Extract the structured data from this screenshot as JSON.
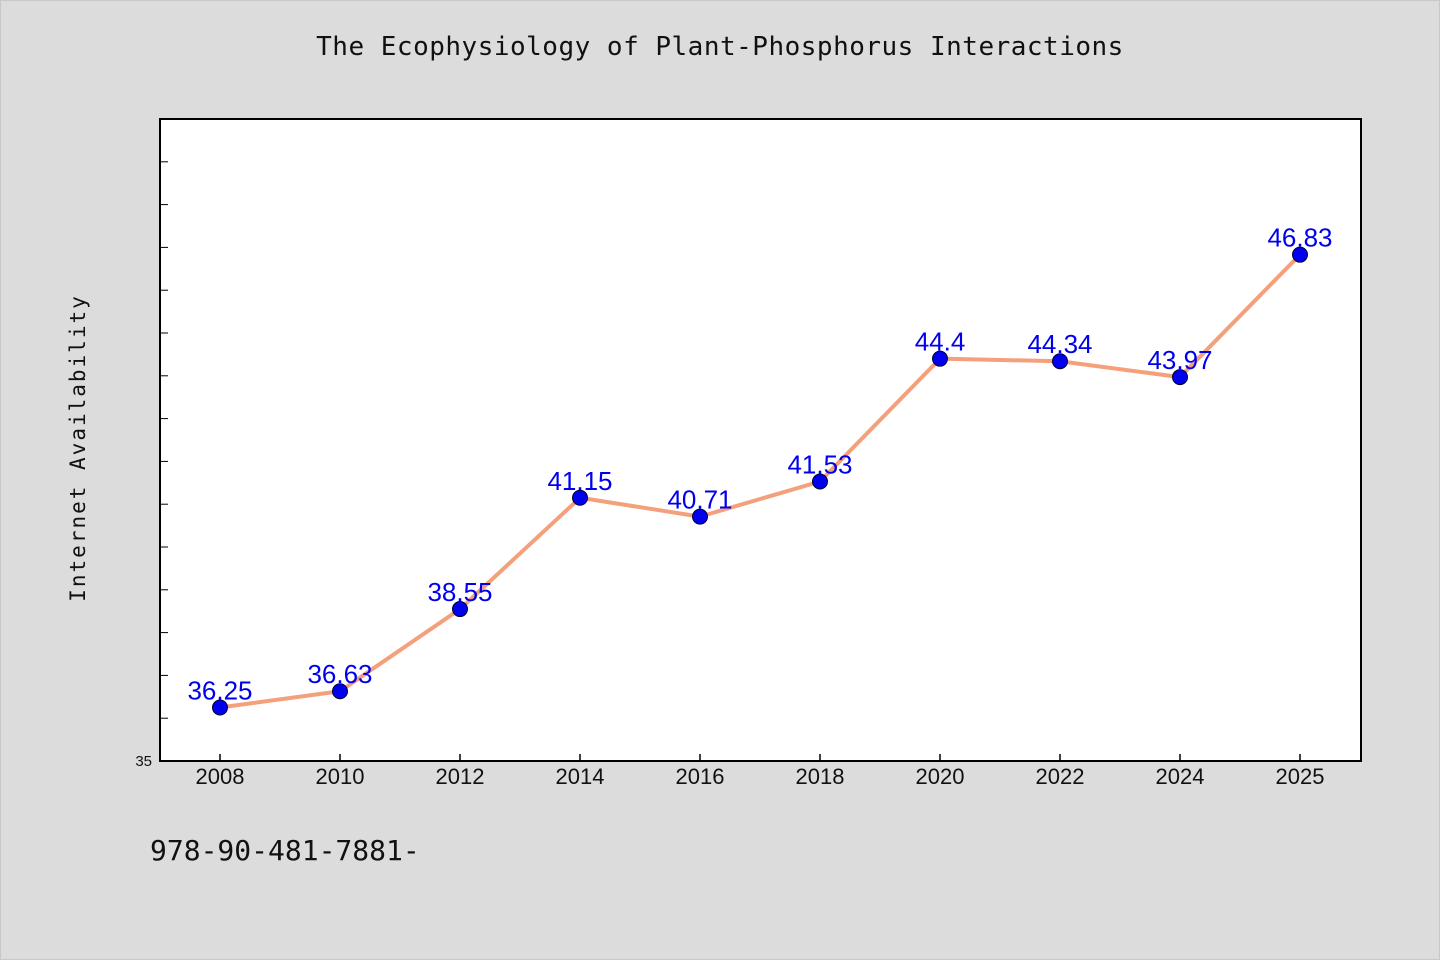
{
  "page": {
    "title": "The Ecophysiology of Plant-Phosphorus Interactions",
    "footer": "978-90-481-7881-"
  },
  "chart_data": {
    "type": "line",
    "title": "The Ecophysiology of Plant-Phosphorus Interactions",
    "xlabel": "",
    "ylabel": "Internet Availability",
    "categories": [
      "2008",
      "2010",
      "2012",
      "2014",
      "2016",
      "2018",
      "2020",
      "2022",
      "2024",
      "2025"
    ],
    "series": [
      {
        "values": [
          36.25,
          36.63,
          38.55,
          41.15,
          40.71,
          41.53,
          44.4,
          44.34,
          43.97,
          46.83
        ],
        "data_labels": [
          "36.25",
          "36.63",
          "38.55",
          "41.15",
          "40.71",
          "41.53",
          "44.4",
          "44.34",
          "43.97",
          "46.83"
        ]
      }
    ],
    "ylim": [
      35,
      50
    ],
    "y_tick_labels": [
      {
        "value": 35,
        "label": "35"
      }
    ],
    "y_minor_ticks": [
      36,
      37,
      38,
      39,
      40,
      41,
      42,
      43,
      44,
      45,
      46,
      47,
      48,
      49
    ],
    "grid": false,
    "legend": "none",
    "colors": {
      "line": "#f4a07a",
      "marker": "#0000ee",
      "data_label": "#0000ee",
      "plot_background": "#ffffff",
      "page_background": "#dcdcdc"
    }
  }
}
